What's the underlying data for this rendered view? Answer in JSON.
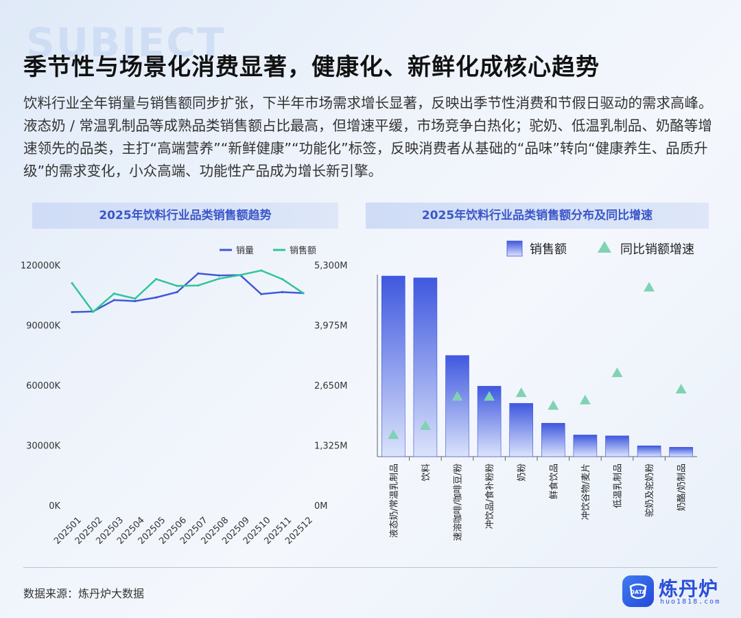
{
  "header": {
    "watermark_word": "SUBJECT",
    "title": "季节性与场景化消费显著，健康化、新鲜化成核心趋势",
    "summary": "饮料行业全年销量与销售额同步扩张，下半年市场需求增长显著，反映出季节性消费和节假日驱动的需求高峰。液态奶 / 常温乳制品等成熟品类销售额占比最高，但增速平缓，市场竞争白热化；驼奶、低温乳制品、奶酪等增速领先的品类，主打“高端营养”“新鲜健康”“功能化”标签，反映消费者从基础的“品味”转向“健康养生、品质升级”的需求变化，小众高端、功能性产品成为增长新引擎。"
  },
  "footer": {
    "source": "数据来源：炼丹炉大数据",
    "brand": "炼丹炉",
    "brand_badge": "DATA",
    "url": "huo1818.com"
  },
  "colors": {
    "volume_line": "#4058d6",
    "sales_line": "#2fc59a",
    "bar_top": "#3f58df",
    "bar_bottom": "#dbe3fb",
    "triangle": "#7fd3b2",
    "panel_title_text": "#3b56c8"
  },
  "chart_data": [
    {
      "type": "line",
      "title": "2025年饮料行业品类销售额趋势",
      "x": [
        "202501",
        "202502",
        "202503",
        "202504",
        "202505",
        "202506",
        "202507",
        "202508",
        "202509",
        "202510",
        "202511",
        "202512"
      ],
      "y_left_ticks": [
        "0K",
        "30000K",
        "60000K",
        "90000K",
        "120000K"
      ],
      "y_left_range": [
        0,
        120000
      ],
      "y_right_ticks": [
        "0M",
        "1,325M",
        "2,650M",
        "3,975M",
        "5,300M"
      ],
      "y_right_range": [
        0,
        5300
      ],
      "legend_position": "top-right",
      "series": [
        {
          "name": "销量",
          "axis": "left",
          "values": [
            96500,
            96800,
            102500,
            102000,
            103800,
            106500,
            115800,
            114800,
            115000,
            105500,
            106500,
            106000
          ]
        },
        {
          "name": "销售额",
          "axis": "right",
          "values": [
            4900,
            4270,
            4670,
            4560,
            4990,
            4840,
            4850,
            5000,
            5080,
            5180,
            4990,
            4680
          ]
        }
      ]
    },
    {
      "type": "bar",
      "title": "2025年饮料行业品类销售额分布及同比增速",
      "legend_position": "top",
      "categories": [
        "液态奶/常温乳制品",
        "饮料",
        "速溶咖啡/咖啡豆/粉",
        "冲饮品/食补粉粉",
        "奶粉",
        "鲜食饮品",
        "冲饮谷物/麦片",
        "低温乳制品",
        "驼奶及驼奶粉",
        "奶酪/奶制品"
      ],
      "series": [
        {
          "name": "销售额",
          "kind": "bar",
          "values": [
            100,
            99,
            56,
            39,
            29.5,
            18.5,
            12,
            11.5,
            6,
            5.2
          ]
        },
        {
          "name": "同比销额增速",
          "kind": "marker",
          "values": [
            12,
            17,
            33,
            33,
            35,
            28,
            31,
            46,
            93,
            37
          ]
        }
      ]
    }
  ]
}
